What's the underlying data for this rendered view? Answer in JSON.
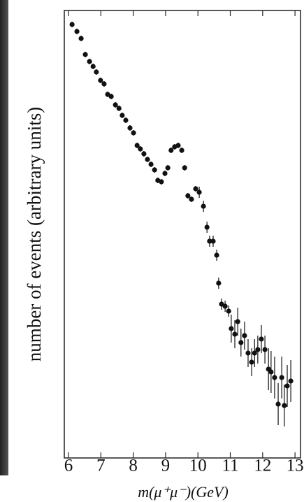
{
  "chart_data": {
    "type": "scatter",
    "xlabel": "m(μ⁺μ⁻)(GeV)",
    "ylabel": "number of events (arbitrary units)",
    "x": [
      6.11,
      6.26,
      6.39,
      6.52,
      6.65,
      6.76,
      6.86,
      6.99,
      7.1,
      7.21,
      7.32,
      7.45,
      7.56,
      7.66,
      7.77,
      7.9,
      8.01,
      8.12,
      8.22,
      8.33,
      8.44,
      8.55,
      8.66,
      8.76,
      8.87,
      8.98,
      9.07,
      9.17,
      9.28,
      9.39,
      9.5,
      9.59,
      9.69,
      9.8,
      9.93,
      10.04,
      10.17,
      10.28,
      10.36,
      10.47,
      10.58,
      10.64,
      10.73,
      10.84,
      10.95,
      11.03,
      11.14,
      11.23,
      11.33,
      11.44,
      11.55,
      11.66,
      11.75,
      11.85,
      11.96,
      12.07,
      12.18,
      12.26,
      12.37,
      12.48,
      12.59,
      12.67,
      12.76,
      12.87
    ],
    "values": [
      620,
      610,
      600,
      577,
      567,
      560,
      552,
      540,
      535,
      520,
      517,
      505,
      500,
      490,
      483,
      472,
      465,
      447,
      442,
      435,
      427,
      420,
      412,
      397,
      395,
      407,
      415,
      440,
      445,
      447,
      440,
      415,
      375,
      370,
      385,
      380,
      360,
      330,
      310,
      310,
      290,
      250,
      220,
      217,
      210,
      185,
      177,
      195,
      165,
      175,
      150,
      137,
      150,
      155,
      170,
      155,
      127,
      123,
      115,
      77,
      115,
      75,
      103,
      110
    ],
    "errors": [
      4,
      4,
      4,
      4,
      4,
      4,
      4,
      4,
      4,
      4,
      4,
      4,
      4,
      4,
      4,
      4,
      4,
      4,
      4,
      4,
      4,
      4,
      4,
      4,
      4,
      4,
      4,
      4,
      4,
      4,
      4,
      4,
      4,
      4,
      4,
      8,
      8,
      8,
      8,
      8,
      8,
      8,
      8,
      8,
      8,
      20,
      20,
      20,
      20,
      20,
      20,
      20,
      20,
      20,
      20,
      20,
      30,
      30,
      30,
      30,
      30,
      30,
      30,
      30
    ],
    "color": "#111111",
    "xlim": [
      5.87,
      13.17
    ],
    "xticks": [
      6,
      7,
      8,
      9,
      10,
      11,
      12,
      13
    ],
    "ylim": [
      0,
      640
    ]
  }
}
